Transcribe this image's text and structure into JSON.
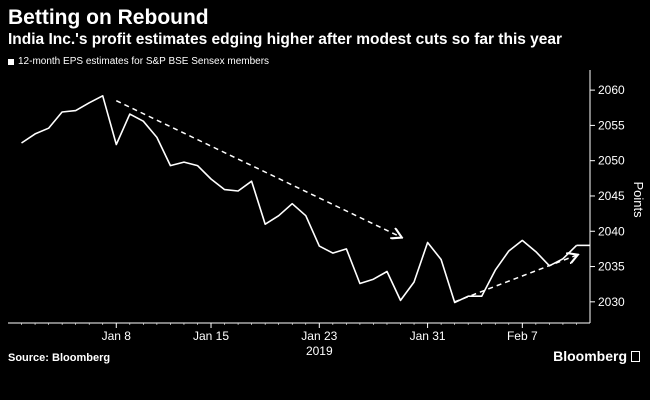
{
  "header": {
    "title": "Betting on Rebound",
    "subtitle": "India Inc.'s profit estimates edging higher after modest cuts so far this year"
  },
  "footer": {
    "source": "Source: Bloomberg",
    "brand": "Bloomberg"
  },
  "colors": {
    "background": "#000000",
    "line": "#ffffff",
    "axis": "#ffffff",
    "trend_arrow": "#ffffff"
  },
  "chart_data": {
    "type": "line",
    "title": "Betting on Rebound",
    "subtitle": "India Inc.'s profit estimates edging higher after modest cuts so far this year",
    "ylabel": "Points",
    "year_label": "2019",
    "ylim": [
      2027,
      2062
    ],
    "yticks": [
      2030,
      2035,
      2040,
      2045,
      2050,
      2055,
      2060
    ],
    "xlim": [
      "2018-12-31",
      "2019-02-12"
    ],
    "xticks": [
      {
        "date": "2019-01-08",
        "label": "Jan 8"
      },
      {
        "date": "2019-01-15",
        "label": "Jan 15"
      },
      {
        "date": "2019-01-23",
        "label": "Jan 23"
      },
      {
        "date": "2019-01-31",
        "label": "Jan 31"
      },
      {
        "date": "2019-02-07",
        "label": "Feb 7"
      }
    ],
    "grid": false,
    "legend_position": "top-left",
    "series": [
      {
        "name": "12-month EPS estimates for S&P BSE Sensex members",
        "x": [
          "2019-01-01",
          "2019-01-02",
          "2019-01-03",
          "2019-01-04",
          "2019-01-05",
          "2019-01-06",
          "2019-01-07",
          "2019-01-08",
          "2019-01-09",
          "2019-01-10",
          "2019-01-11",
          "2019-01-12",
          "2019-01-13",
          "2019-01-14",
          "2019-01-15",
          "2019-01-16",
          "2019-01-17",
          "2019-01-18",
          "2019-01-19",
          "2019-01-20",
          "2019-01-21",
          "2019-01-22",
          "2019-01-23",
          "2019-01-24",
          "2019-01-25",
          "2019-01-26",
          "2019-01-27",
          "2019-01-28",
          "2019-01-29",
          "2019-01-30",
          "2019-01-31",
          "2019-02-01",
          "2019-02-02",
          "2019-02-03",
          "2019-02-04",
          "2019-02-05",
          "2019-02-06",
          "2019-02-07",
          "2019-02-08",
          "2019-02-09",
          "2019-02-10",
          "2019-02-11"
        ],
        "values": [
          2052.5,
          2053.8,
          2054.6,
          2056.9,
          2057.1,
          2058.2,
          2059.2,
          2052.3,
          2056.6,
          2055.6,
          2053.3,
          2049.3,
          2049.8,
          2049.3,
          2047.4,
          2045.9,
          2045.7,
          2047.1,
          2041.0,
          2042.2,
          2043.9,
          2042.2,
          2037.9,
          2036.9,
          2037.5,
          2032.6,
          2033.2,
          2034.3,
          2030.2,
          2032.8,
          2038.4,
          2036.0,
          2029.9,
          2030.8,
          2030.8,
          2034.5,
          2037.2,
          2038.7,
          2037.1,
          2035.1,
          2036.1,
          2038.0
        ],
        "last_value": 2038.0
      }
    ],
    "annotations": [
      {
        "type": "dashed-arrow",
        "direction": "down",
        "from": {
          "x": "2019-01-08",
          "y": 2058.5
        },
        "to": {
          "x": "2019-01-29",
          "y": 2039.2
        }
      },
      {
        "type": "dashed-arrow",
        "direction": "up",
        "from": {
          "x": "2019-02-02",
          "y": 2030.0
        },
        "to": {
          "x": "2019-02-11",
          "y": 2036.6
        }
      }
    ]
  }
}
